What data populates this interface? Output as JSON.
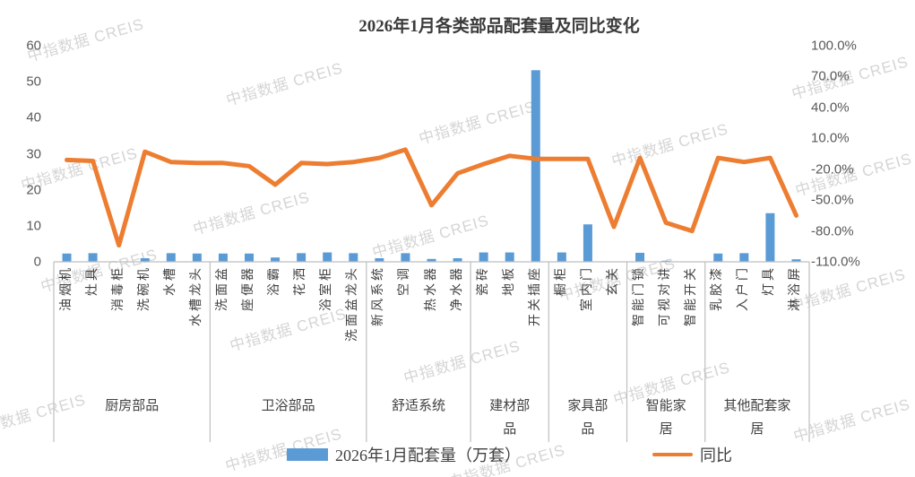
{
  "title": "2026年1月各类部品配套量及同比变化",
  "watermark": "中指数据 CREIS",
  "colors": {
    "bar": "#5B9BD5",
    "line": "#ED7D31",
    "axis_text": "#595959",
    "label_text": "#404040",
    "grid": "#BFBFBF"
  },
  "left_axis": {
    "min": 0,
    "max": 60,
    "ticks": [
      "60",
      "50",
      "40",
      "30",
      "20",
      "10",
      "0"
    ]
  },
  "right_axis": {
    "min": -110,
    "max": 100,
    "ticks": [
      "100.0%",
      "70.0%",
      "40.0%",
      "10.0%",
      "-20.0%",
      "-50.0%",
      "-80.0%",
      "-110.0%"
    ]
  },
  "legend": [
    {
      "label": "2026年1月配套量（万套）",
      "type": "bar"
    },
    {
      "label": "同比",
      "type": "line"
    }
  ],
  "chart_data": {
    "type": "bar+line combo",
    "title": "2026年1月各类部品配套量及同比变化",
    "categories": [
      "油烟机",
      "灶具",
      "消毒柜",
      "洗碗机",
      "水槽",
      "水槽龙头",
      "洗面盆",
      "座便器",
      "浴霸",
      "花洒",
      "浴室柜",
      "洗面盆龙头",
      "新风系统",
      "空调",
      "热水器",
      "净水器",
      "瓷砖",
      "地板",
      "开关插座",
      "橱柜",
      "室内门",
      "玄关",
      "智能门锁",
      "可视对讲",
      "智能开关",
      "乳胶漆",
      "入户门",
      "灯具",
      "淋浴屏"
    ],
    "category_groups": [
      {
        "label": "厨房部品",
        "count": 6
      },
      {
        "label": "卫浴部品",
        "count": 6
      },
      {
        "label": "舒适系统",
        "count": 4
      },
      {
        "label": "建材部品",
        "count": 3
      },
      {
        "label": "家具部品",
        "count": 3
      },
      {
        "label": "智能家居",
        "count": 3
      },
      {
        "label": "其他配套家居",
        "count": 4
      }
    ],
    "series": [
      {
        "name": "2026年1月配套量（万套）",
        "type": "bar",
        "axis": "left",
        "values": [
          2.3,
          2.4,
          0.1,
          1.0,
          2.4,
          2.3,
          2.3,
          2.3,
          1.2,
          2.4,
          2.6,
          2.4,
          1.0,
          2.4,
          0.8,
          1.0,
          2.6,
          2.6,
          53.2,
          2.6,
          10.4,
          0.1,
          2.5,
          0.3,
          0.1,
          2.3,
          2.4,
          13.5,
          0.7
        ]
      },
      {
        "name": "同比",
        "type": "line",
        "axis": "right",
        "unit": "%",
        "values": [
          -11,
          -12,
          -94,
          -3,
          -13,
          -14,
          -14,
          -17,
          -35,
          -14,
          -15,
          -13,
          -9,
          -1,
          -55,
          -24,
          -15,
          -7,
          -10,
          -10,
          -10,
          -76,
          -9,
          -72,
          -80,
          -9,
          -13,
          -9,
          -65
        ]
      }
    ],
    "left_axis_range": [
      0,
      60
    ],
    "right_axis_range": [
      -110,
      100
    ],
    "grid": false,
    "legend_position": "bottom"
  }
}
